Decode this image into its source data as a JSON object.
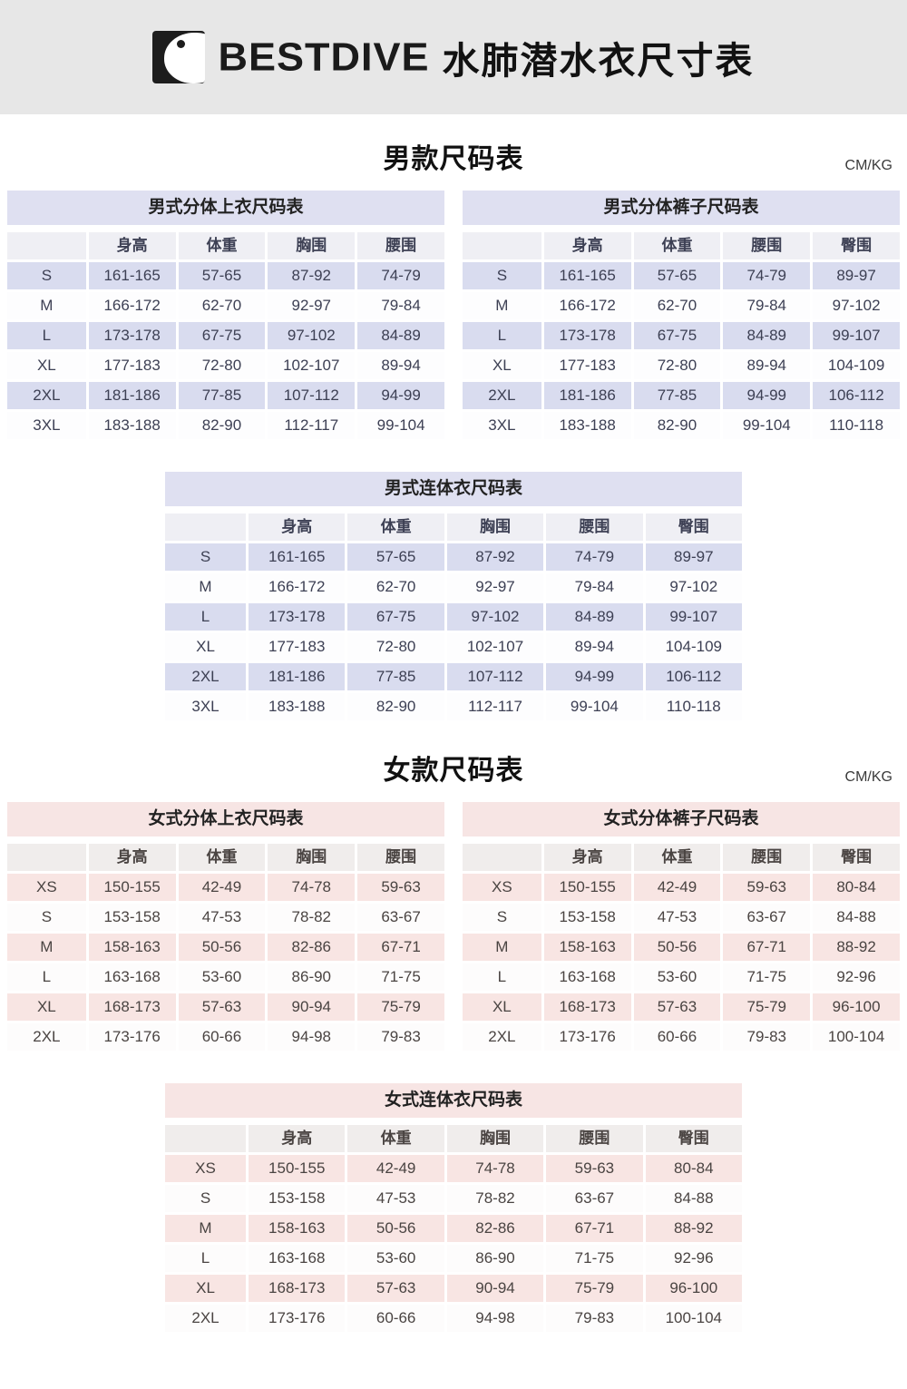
{
  "banner": {
    "brand": "BESTDIVE",
    "title": "水肺潜水衣尺寸表"
  },
  "sections": [
    {
      "heading": "男款尺码表",
      "units": "CM/KG",
      "theme": {
        "band": "#dfe0f1",
        "alt_row": "#d9dcef",
        "header_row": "#efeff4",
        "white_row": "#fdfdfe",
        "text": "#3d4054"
      },
      "tables": [
        {
          "title": "男式分体上衣尺码表",
          "placement": "left",
          "columns": [
            "",
            "身高",
            "体重",
            "胸围",
            "腰围"
          ],
          "rows": [
            {
              "size": "S",
              "values": [
                "161-165",
                "57-65",
                "87-92",
                "74-79"
              ]
            },
            {
              "size": "M",
              "values": [
                "166-172",
                "62-70",
                "92-97",
                "79-84"
              ]
            },
            {
              "size": "L",
              "values": [
                "173-178",
                "67-75",
                "97-102",
                "84-89"
              ]
            },
            {
              "size": "XL",
              "values": [
                "177-183",
                "72-80",
                "102-107",
                "89-94"
              ]
            },
            {
              "size": "2XL",
              "values": [
                "181-186",
                "77-85",
                "107-112",
                "94-99"
              ]
            },
            {
              "size": "3XL",
              "values": [
                "183-188",
                "82-90",
                "112-117",
                "99-104"
              ]
            }
          ]
        },
        {
          "title": "男式分体裤子尺码表",
          "placement": "right",
          "columns": [
            "",
            "身高",
            "体重",
            "腰围",
            "臀围"
          ],
          "rows": [
            {
              "size": "S",
              "values": [
                "161-165",
                "57-65",
                "74-79",
                "89-97"
              ]
            },
            {
              "size": "M",
              "values": [
                "166-172",
                "62-70",
                "79-84",
                "97-102"
              ]
            },
            {
              "size": "L",
              "values": [
                "173-178",
                "67-75",
                "84-89",
                "99-107"
              ]
            },
            {
              "size": "XL",
              "values": [
                "177-183",
                "72-80",
                "89-94",
                "104-109"
              ]
            },
            {
              "size": "2XL",
              "values": [
                "181-186",
                "77-85",
                "94-99",
                "106-112"
              ]
            },
            {
              "size": "3XL",
              "values": [
                "183-188",
                "82-90",
                "99-104",
                "110-118"
              ]
            }
          ]
        },
        {
          "title": "男式连体衣尺码表",
          "placement": "center",
          "columns": [
            "",
            "身高",
            "体重",
            "胸围",
            "腰围",
            "臀围"
          ],
          "rows": [
            {
              "size": "S",
              "values": [
                "161-165",
                "57-65",
                "87-92",
                "74-79",
                "89-97"
              ]
            },
            {
              "size": "M",
              "values": [
                "166-172",
                "62-70",
                "92-97",
                "79-84",
                "97-102"
              ]
            },
            {
              "size": "L",
              "values": [
                "173-178",
                "67-75",
                "97-102",
                "84-89",
                "99-107"
              ]
            },
            {
              "size": "XL",
              "values": [
                "177-183",
                "72-80",
                "102-107",
                "89-94",
                "104-109"
              ]
            },
            {
              "size": "2XL",
              "values": [
                "181-186",
                "77-85",
                "107-112",
                "94-99",
                "106-112"
              ]
            },
            {
              "size": "3XL",
              "values": [
                "183-188",
                "82-90",
                "112-117",
                "99-104",
                "110-118"
              ]
            }
          ]
        }
      ]
    },
    {
      "heading": "女款尺码表",
      "units": "CM/KG",
      "theme": {
        "band": "#f7e5e4",
        "alt_row": "#f8e5e3",
        "header_row": "#f0edec",
        "white_row": "#fdfcfc",
        "text": "#4a4442"
      },
      "tables": [
        {
          "title": "女式分体上衣尺码表",
          "placement": "left",
          "columns": [
            "",
            "身高",
            "体重",
            "胸围",
            "腰围"
          ],
          "rows": [
            {
              "size": "XS",
              "values": [
                "150-155",
                "42-49",
                "74-78",
                "59-63"
              ]
            },
            {
              "size": "S",
              "values": [
                "153-158",
                "47-53",
                "78-82",
                "63-67"
              ]
            },
            {
              "size": "M",
              "values": [
                "158-163",
                "50-56",
                "82-86",
                "67-71"
              ]
            },
            {
              "size": "L",
              "values": [
                "163-168",
                "53-60",
                "86-90",
                "71-75"
              ]
            },
            {
              "size": "XL",
              "values": [
                "168-173",
                "57-63",
                "90-94",
                "75-79"
              ]
            },
            {
              "size": "2XL",
              "values": [
                "173-176",
                "60-66",
                "94-98",
                "79-83"
              ]
            }
          ]
        },
        {
          "title": "女式分体裤子尺码表",
          "placement": "right",
          "columns": [
            "",
            "身高",
            "体重",
            "腰围",
            "臀围"
          ],
          "rows": [
            {
              "size": "XS",
              "values": [
                "150-155",
                "42-49",
                "59-63",
                "80-84"
              ]
            },
            {
              "size": "S",
              "values": [
                "153-158",
                "47-53",
                "63-67",
                "84-88"
              ]
            },
            {
              "size": "M",
              "values": [
                "158-163",
                "50-56",
                "67-71",
                "88-92"
              ]
            },
            {
              "size": "L",
              "values": [
                "163-168",
                "53-60",
                "71-75",
                "92-96"
              ]
            },
            {
              "size": "XL",
              "values": [
                "168-173",
                "57-63",
                "75-79",
                "96-100"
              ]
            },
            {
              "size": "2XL",
              "values": [
                "173-176",
                "60-66",
                "79-83",
                "100-104"
              ]
            }
          ]
        },
        {
          "title": "女式连体衣尺码表",
          "placement": "center",
          "columns": [
            "",
            "身高",
            "体重",
            "胸围",
            "腰围",
            "臀围"
          ],
          "rows": [
            {
              "size": "XS",
              "values": [
                "150-155",
                "42-49",
                "74-78",
                "59-63",
                "80-84"
              ]
            },
            {
              "size": "S",
              "values": [
                "153-158",
                "47-53",
                "78-82",
                "63-67",
                "84-88"
              ]
            },
            {
              "size": "M",
              "values": [
                "158-163",
                "50-56",
                "82-86",
                "67-71",
                "88-92"
              ]
            },
            {
              "size": "L",
              "values": [
                "163-168",
                "53-60",
                "86-90",
                "71-75",
                "92-96"
              ]
            },
            {
              "size": "XL",
              "values": [
                "168-173",
                "57-63",
                "90-94",
                "75-79",
                "96-100"
              ]
            },
            {
              "size": "2XL",
              "values": [
                "173-176",
                "60-66",
                "94-98",
                "79-83",
                "100-104"
              ]
            }
          ]
        }
      ]
    }
  ]
}
